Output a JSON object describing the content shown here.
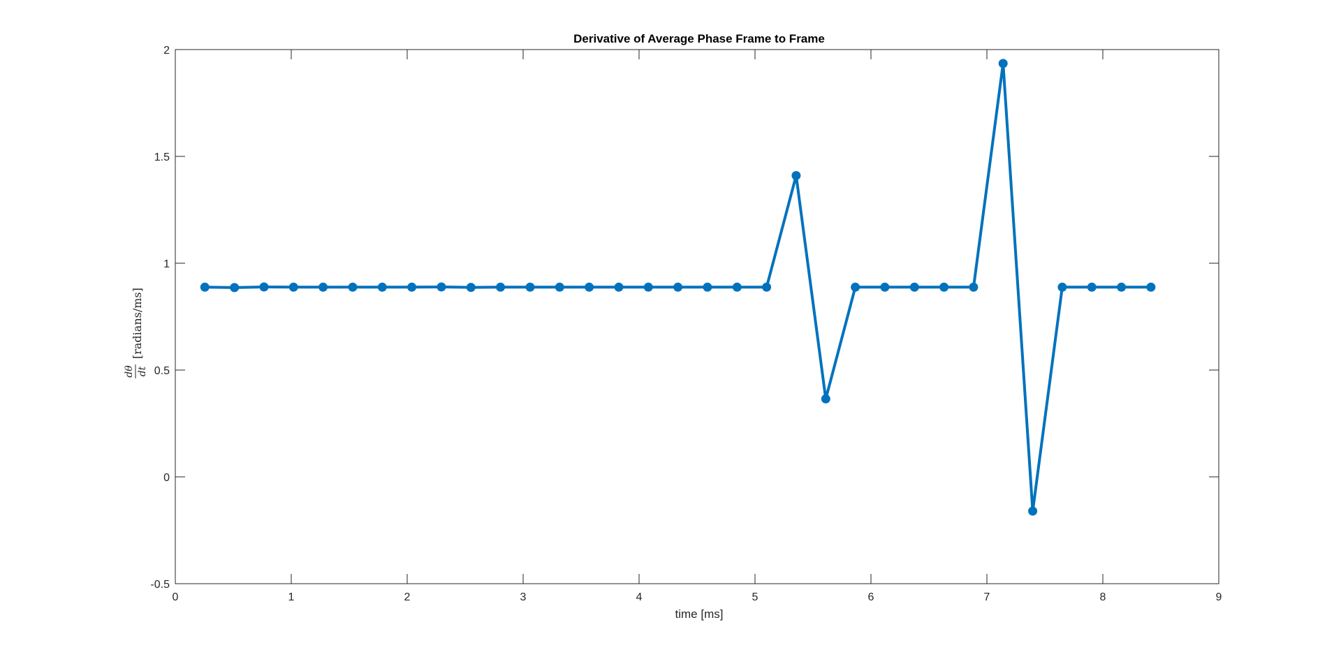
{
  "chart_data": {
    "type": "line",
    "title": "Derivative of Average Phase Frame to Frame",
    "xlabel": "time [ms]",
    "ylabel": {
      "numerator": "dθ",
      "denominator": "dt",
      "unit": "[radians/ms]"
    },
    "xlim": [
      0,
      9
    ],
    "ylim": [
      -0.5,
      2
    ],
    "x_ticks": [
      0,
      1,
      2,
      3,
      4,
      5,
      6,
      7,
      8,
      9
    ],
    "y_ticks": [
      -0.5,
      0,
      0.5,
      1,
      1.5,
      2
    ],
    "x_tick_labels": [
      "0",
      "1",
      "2",
      "3",
      "4",
      "5",
      "6",
      "7",
      "8",
      "9"
    ],
    "y_tick_labels": [
      "-0.5",
      "0",
      "0.5",
      "1",
      "1.5",
      "2"
    ],
    "grid": false,
    "line_color": "#0072BD",
    "series": [
      {
        "x": [
          0.255,
          0.51,
          0.765,
          1.02,
          1.275,
          1.53,
          1.785,
          2.04,
          2.295,
          2.55,
          2.805,
          3.06,
          3.315,
          3.57,
          3.825,
          4.08,
          4.335,
          4.59,
          4.845,
          5.1,
          5.355,
          5.61,
          5.865,
          6.12,
          6.375,
          6.63,
          6.885,
          7.14,
          7.395,
          7.65,
          7.905,
          8.16,
          8.415
        ],
        "y": [
          0.888,
          0.886,
          0.889,
          0.888,
          0.888,
          0.888,
          0.888,
          0.888,
          0.889,
          0.887,
          0.888,
          0.888,
          0.888,
          0.888,
          0.888,
          0.888,
          0.888,
          0.888,
          0.888,
          0.888,
          1.41,
          0.365,
          0.888,
          0.888,
          0.888,
          0.888,
          0.888,
          1.935,
          -0.16,
          0.888,
          0.888,
          0.888,
          0.888
        ]
      }
    ]
  }
}
